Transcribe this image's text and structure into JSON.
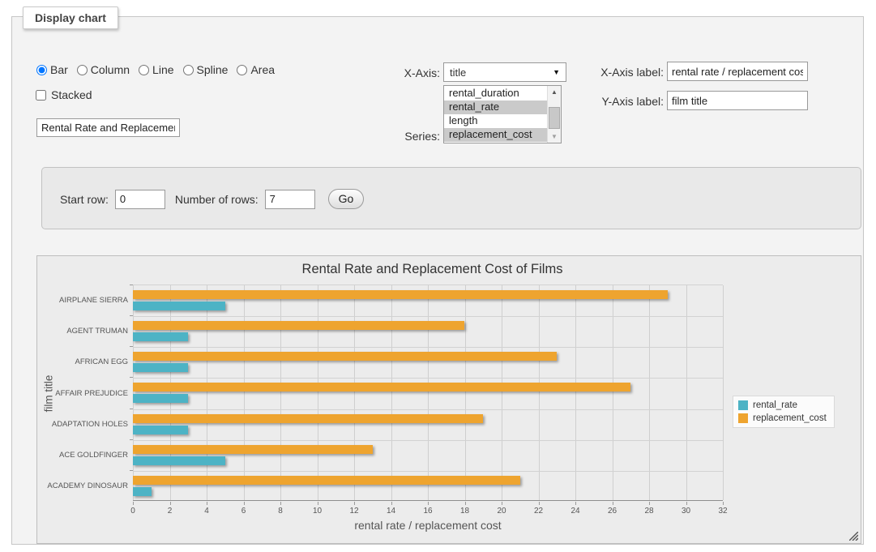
{
  "panel": {
    "title": "Display chart"
  },
  "chart_type": {
    "options": [
      {
        "label": "Bar",
        "selected": true
      },
      {
        "label": "Column",
        "selected": false
      },
      {
        "label": "Line",
        "selected": false
      },
      {
        "label": "Spline",
        "selected": false
      },
      {
        "label": "Area",
        "selected": false
      }
    ]
  },
  "stacked": {
    "label": "Stacked",
    "checked": false
  },
  "chart_title_input": {
    "value": "Rental Rate and Replacemer"
  },
  "x_axis_select": {
    "label": "X-Axis:",
    "value": "title"
  },
  "series_select": {
    "label": "Series:",
    "options": [
      {
        "label": "rental_duration",
        "selected": false
      },
      {
        "label": "rental_rate",
        "selected": true
      },
      {
        "label": "length",
        "selected": false
      },
      {
        "label": "replacement_cost",
        "selected": true
      }
    ]
  },
  "x_axis_label_field": {
    "label": "X-Axis label:",
    "value": "rental rate / replacement cost"
  },
  "y_axis_label_field": {
    "label": "Y-Axis label:",
    "value": "film title"
  },
  "row_controls": {
    "start_row_label": "Start row:",
    "start_row_value": "0",
    "rows_label": "Number of rows:",
    "rows_value": "7",
    "go_label": "Go"
  },
  "chart_data": {
    "type": "bar",
    "title": "Rental Rate and Replacement Cost of Films",
    "categories": [
      "AIRPLANE SIERRA",
      "AGENT TRUMAN",
      "AFRICAN EGG",
      "AFFAIR PREJUDICE",
      "ADAPTATION HOLES",
      "ACE GOLDFINGER",
      "ACADEMY DINOSAUR"
    ],
    "series": [
      {
        "name": "rental_rate",
        "color": "#4db3c5",
        "values": [
          4.99,
          2.99,
          2.99,
          2.99,
          2.99,
          4.99,
          0.99
        ]
      },
      {
        "name": "replacement_cost",
        "color": "#eea42f",
        "values": [
          28.99,
          17.99,
          22.99,
          26.99,
          18.99,
          12.99,
          20.99
        ]
      }
    ],
    "xlabel": "rental rate / replacement cost",
    "ylabel": "film title",
    "xlim": [
      0,
      32
    ],
    "xticks": [
      0,
      2,
      4,
      6,
      8,
      10,
      12,
      14,
      16,
      18,
      20,
      22,
      24,
      26,
      28,
      30,
      32
    ],
    "grid": true,
    "legend_position": "right"
  }
}
